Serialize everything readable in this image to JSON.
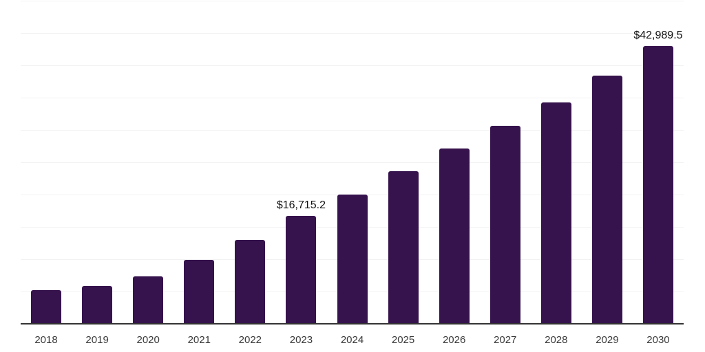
{
  "chart_data": {
    "type": "bar",
    "title": "",
    "xlabel": "",
    "ylabel": "",
    "categories": [
      "2018",
      "2019",
      "2020",
      "2021",
      "2022",
      "2023",
      "2024",
      "2025",
      "2026",
      "2027",
      "2028",
      "2029",
      "2030"
    ],
    "values": [
      5200,
      5900,
      7300,
      9900,
      13000,
      16715.2,
      20000,
      23600,
      27100,
      30600,
      34300,
      38400,
      42989.5
    ],
    "point_labels": {
      "2023": "$16,715.2",
      "2030": "$42,989.5"
    },
    "ylim": [
      0,
      50000
    ],
    "gridline_step": 5000,
    "grid": "horizontal-only",
    "legend": "none",
    "colors": {
      "bar": "#36134d",
      "gridline": "#f2f2f2",
      "axis_line": "#333333",
      "tick_label": "#3a3a3a",
      "data_label": "#111111",
      "background": "#ffffff"
    }
  }
}
